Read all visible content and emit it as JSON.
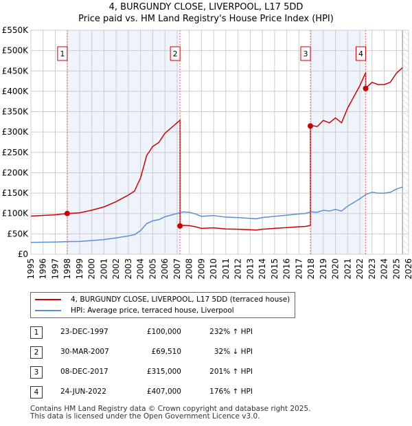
{
  "chart_data": {
    "type": "line",
    "title": "4, BURGUNDY CLOSE, LIVERPOOL, L17 5DD",
    "subtitle": "Price paid vs. HM Land Registry's House Price Index (HPI)",
    "xlim": [
      1995,
      2026
    ],
    "ylim": [
      0,
      550000
    ],
    "yticks": [
      0,
      50000,
      100000,
      150000,
      200000,
      250000,
      300000,
      350000,
      400000,
      450000,
      500000,
      550000
    ],
    "ytick_labels": [
      "£0",
      "£50K",
      "£100K",
      "£150K",
      "£200K",
      "£250K",
      "£300K",
      "£350K",
      "£400K",
      "£450K",
      "£500K",
      "£550K"
    ],
    "xticks": [
      "1995",
      "1996",
      "1997",
      "1998",
      "1999",
      "2000",
      "2001",
      "2002",
      "2003",
      "2004",
      "2005",
      "2006",
      "2007",
      "2008",
      "2009",
      "2010",
      "2011",
      "2012",
      "2013",
      "2014",
      "2015",
      "2016",
      "2017",
      "2018",
      "2019",
      "2020",
      "2021",
      "2022",
      "2023",
      "2024",
      "2025",
      "2026"
    ],
    "grid": true,
    "colors": {
      "property": "#cc0000",
      "hpi": "#5b8fd4",
      "shade": "#eef3fc"
    },
    "hpi": {
      "x": [
        1995,
        1996,
        1997,
        1998,
        1999,
        2000,
        2001,
        2002,
        2003,
        2003.5,
        2004,
        2004.5,
        2005,
        2005.5,
        2006,
        2006.5,
        2007,
        2007.5,
        2008,
        2008.5,
        2009,
        2009.5,
        2010,
        2011,
        2012,
        2013,
        2013.5,
        2014,
        2015,
        2016,
        2017,
        2017.5,
        2018,
        2018.5,
        2019,
        2019.5,
        2020,
        2020.5,
        2021,
        2021.5,
        2022,
        2022.5,
        2023,
        2023.5,
        2024,
        2024.5,
        2025,
        2025.5
      ],
      "y": [
        29000,
        29500,
        30000,
        31000,
        31500,
        33500,
        36000,
        40000,
        45000,
        48000,
        58000,
        75000,
        82000,
        85000,
        92000,
        96000,
        100000,
        104000,
        103000,
        99000,
        93000,
        94000,
        95000,
        91000,
        90000,
        88000,
        87000,
        90000,
        93000,
        96000,
        99000,
        100000,
        104000,
        103000,
        108000,
        106000,
        110000,
        106000,
        118000,
        127000,
        136000,
        147000,
        152000,
        150000,
        150000,
        152000,
        160000,
        165000
      ]
    },
    "sales": [
      {
        "label": "1",
        "x": 1997.98,
        "price": 100000
      },
      {
        "label": "2",
        "x": 2007.24,
        "price": 69510
      },
      {
        "label": "3",
        "x": 2017.94,
        "price": 315000
      },
      {
        "label": "4",
        "x": 2022.48,
        "price": 407000
      }
    ],
    "data_end": 2025.5
  },
  "legend": {
    "property": "4, BURGUNDY CLOSE, LIVERPOOL, L17 5DD (terraced house)",
    "hpi": "HPI: Average price, terraced house, Liverpool"
  },
  "table": [
    {
      "n": "1",
      "date": "23-DEC-1997",
      "price": "£100,000",
      "hpi": "232% ↑ HPI"
    },
    {
      "n": "2",
      "date": "30-MAR-2007",
      "price": "£69,510",
      "hpi": "32% ↓ HPI"
    },
    {
      "n": "3",
      "date": "08-DEC-2017",
      "price": "£315,000",
      "hpi": "201% ↑ HPI"
    },
    {
      "n": "4",
      "date": "24-JUN-2022",
      "price": "£407,000",
      "hpi": "176% ↑ HPI"
    }
  ],
  "footer": {
    "line1": "Contains HM Land Registry data © Crown copyright and database right 2025.",
    "line2": "This data is licensed under the Open Government Licence v3.0."
  }
}
